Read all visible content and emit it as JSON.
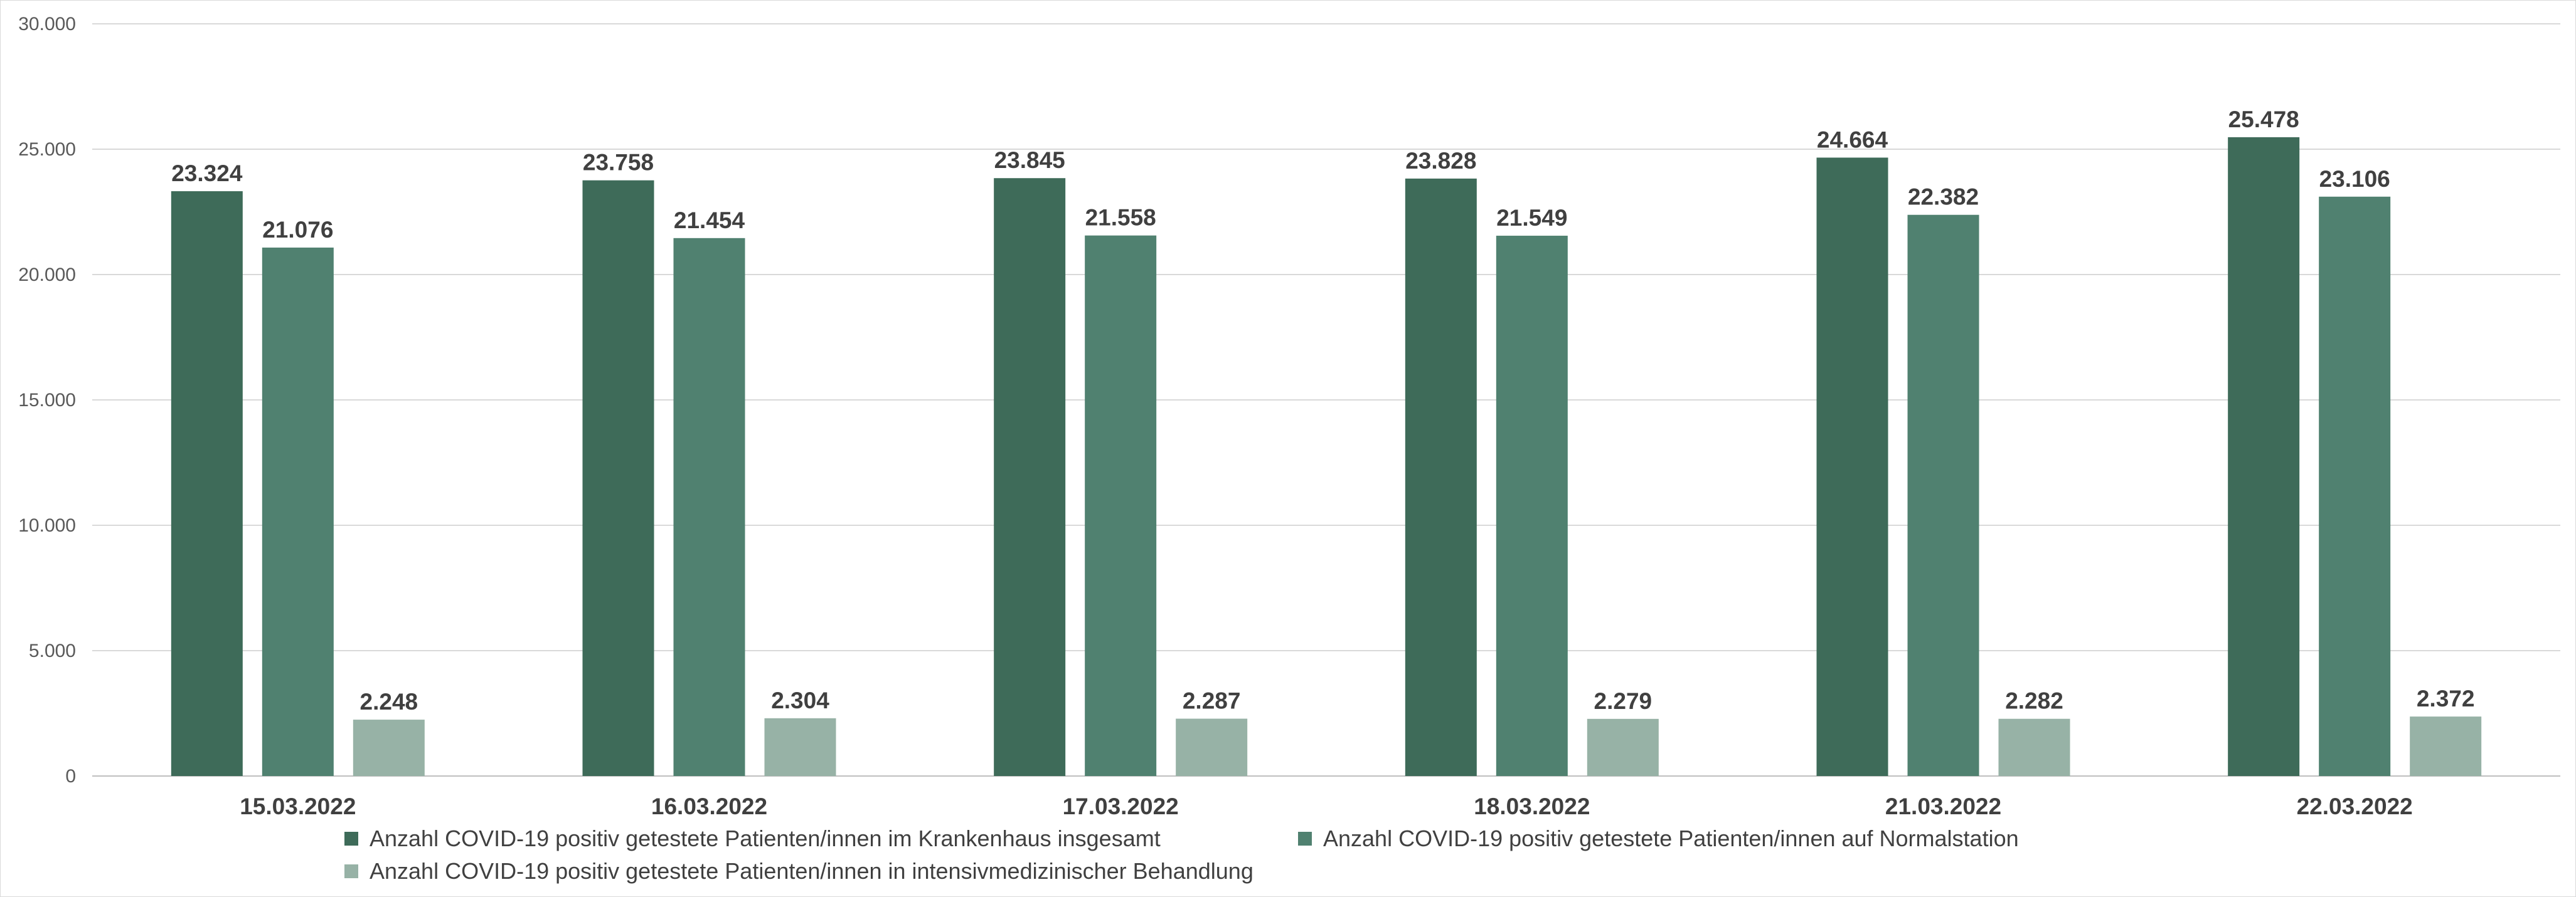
{
  "chart_data": {
    "type": "bar",
    "categories": [
      "15.03.2022",
      "16.03.2022",
      "17.03.2022",
      "18.03.2022",
      "21.03.2022",
      "22.03.2022"
    ],
    "series": [
      {
        "name": "Anzahl COVID-19 positiv getestete Patienten/innen im Krankenhaus insgesamt",
        "values": [
          23324,
          23758,
          23845,
          23828,
          24664,
          25478
        ],
        "labels": [
          "23.324",
          "23.758",
          "23.845",
          "23.828",
          "24.664",
          "25.478"
        ],
        "color": "#3e6b59"
      },
      {
        "name": "Anzahl COVID-19 positiv getestete Patienten/innen auf Normalstation",
        "values": [
          21076,
          21454,
          21558,
          21549,
          22382,
          23106
        ],
        "labels": [
          "21.076",
          "21.454",
          "21.558",
          "21.549",
          "22.382",
          "23.106"
        ],
        "color": "#508170"
      },
      {
        "name": "Anzahl COVID-19 positiv getestete Patienten/innen in intensivmedizinischer Behandlung",
        "values": [
          2248,
          2304,
          2287,
          2279,
          2282,
          2372
        ],
        "labels": [
          "2.248",
          "2.304",
          "2.287",
          "2.279",
          "2.282",
          "2.372"
        ],
        "color": "#97b2a6"
      }
    ],
    "ylim": [
      0,
      30000
    ],
    "yticks": [
      0,
      5000,
      10000,
      15000,
      20000,
      25000,
      30000
    ],
    "ytick_labels": [
      "0",
      "5.000",
      "10.000",
      "15.000",
      "20.000",
      "25.000",
      "30.000"
    ],
    "grid": true,
    "legend_position": "bottom"
  }
}
